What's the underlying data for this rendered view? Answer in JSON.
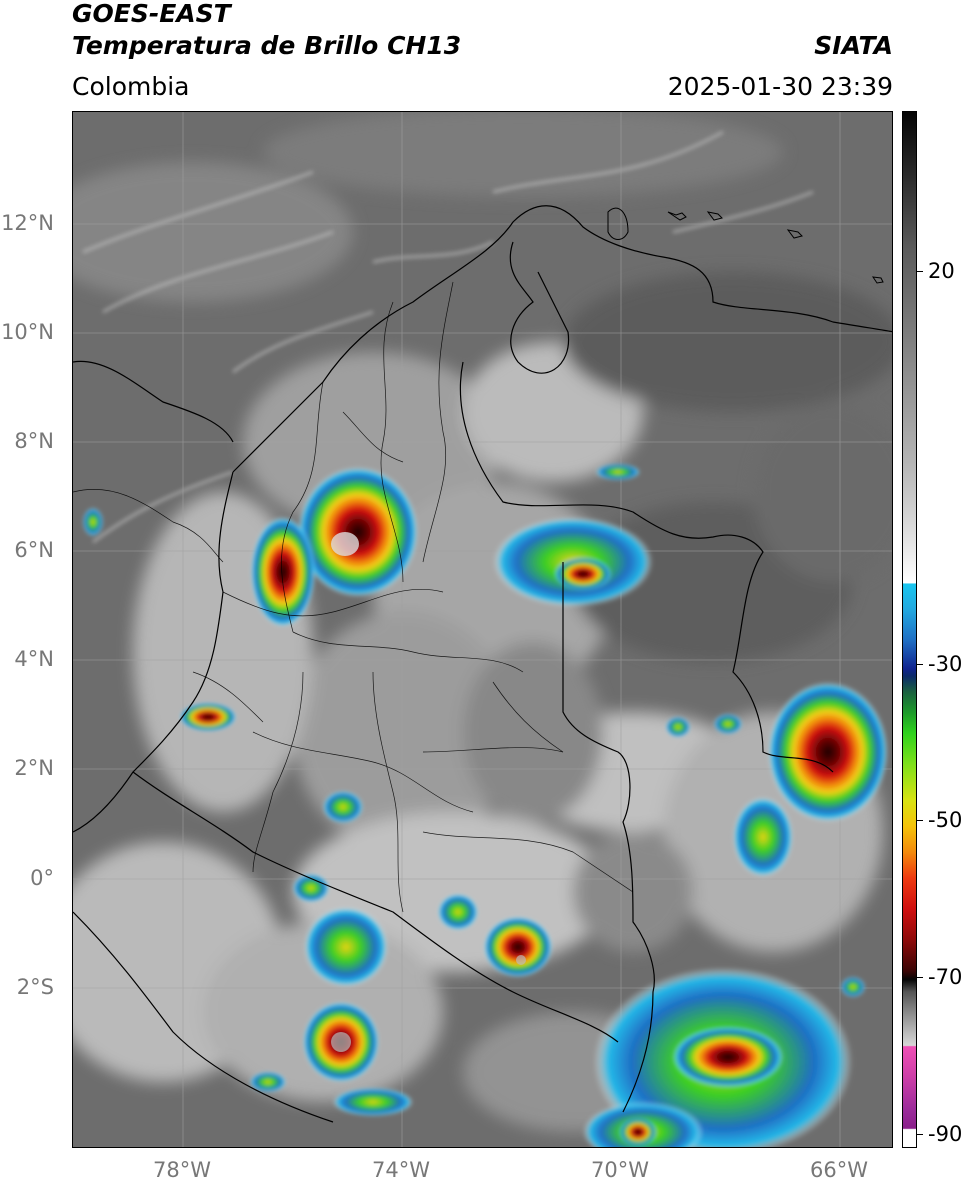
{
  "header": {
    "satellite": "GOES-EAST",
    "product": "Temperatura de Brillo CH13",
    "region": "Colombia",
    "agency": "SIATA",
    "datetime": "2025-01-30 23:39"
  },
  "latitude_labels": [
    "12°N",
    "10°N",
    "8°N",
    "6°N",
    "4°N",
    "2°N",
    "0°",
    "2°S"
  ],
  "longitude_labels": [
    "78°W",
    "74°W",
    "70°W",
    "66°W"
  ],
  "colorbar": {
    "ticks": [
      "20",
      "-30",
      "-50",
      "-70",
      "-90"
    ]
  },
  "colors": {
    "cloud_gray_dark": "#5f5f5f",
    "cloud_gray_light": "#d9d9d9",
    "storm_green": "#2ed21d",
    "storm_red": "#cf0f0f",
    "storm_dark": "#2a0202",
    "cold_blue": "#1f6fc4"
  }
}
